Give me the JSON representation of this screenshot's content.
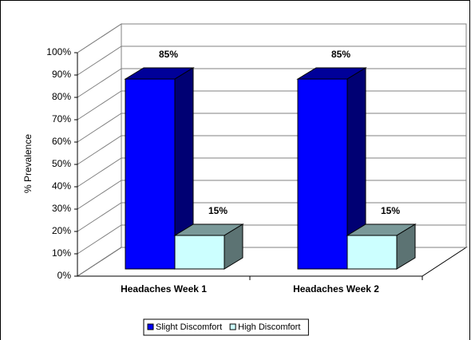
{
  "chart_data": {
    "type": "bar3d",
    "ylabel": "% Prevalence",
    "categories": [
      "Headaches Week 1",
      "Headaches Week 2"
    ],
    "series": [
      {
        "name": "Slight Discomfort",
        "color": "#0000ff",
        "values": [
          85,
          85
        ],
        "value_labels": [
          "85%",
          "85%"
        ]
      },
      {
        "name": "High Discomfort",
        "color": "#ccffff",
        "values": [
          15,
          15
        ],
        "value_labels": [
          "15%",
          "15%"
        ]
      }
    ],
    "ylim": [
      0,
      100
    ],
    "yticks": [
      {
        "value": 0,
        "label": "0%"
      },
      {
        "value": 10,
        "label": "10%"
      },
      {
        "value": 20,
        "label": "20%"
      },
      {
        "value": 30,
        "label": "30%"
      },
      {
        "value": 40,
        "label": "40%"
      },
      {
        "value": 50,
        "label": "50%"
      },
      {
        "value": 60,
        "label": "60%"
      },
      {
        "value": 70,
        "label": "70%"
      },
      {
        "value": 80,
        "label": "80%"
      },
      {
        "value": 90,
        "label": "90%"
      },
      {
        "value": 100,
        "label": "100%"
      }
    ],
    "grid": true,
    "legend": "bottom"
  }
}
